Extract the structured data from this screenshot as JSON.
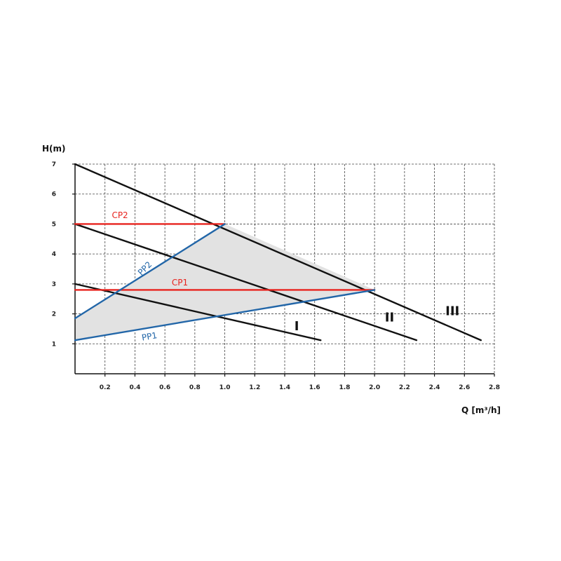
{
  "chart_data": {
    "type": "line",
    "ylabel": "H(m)",
    "xlabel": "Q [m³/h]",
    "xlim": [
      0,
      2.8
    ],
    "ylim": [
      0,
      7
    ],
    "x_ticks": [
      0.2,
      0.4,
      0.6,
      0.8,
      1.0,
      1.2,
      1.4,
      1.6,
      1.8,
      2.0,
      2.2,
      2.4,
      2.6,
      2.8
    ],
    "x_tick_labels": [
      "0.2",
      "0.4",
      "0.6",
      "0.8",
      "1.0",
      "1.2",
      "1.4",
      "1.6",
      "1.8",
      "2.0",
      "2.2",
      "2.4",
      "2.6",
      "2.8"
    ],
    "y_ticks": [
      1,
      2,
      3,
      4,
      5,
      6,
      7
    ],
    "y_tick_labels": [
      "1",
      "2",
      "3",
      "4",
      "5",
      "6",
      "7"
    ],
    "grid": true,
    "operating_area": {
      "color": "#e2e2e2",
      "points": [
        [
          0,
          1.12
        ],
        [
          0,
          1.85
        ],
        [
          1.0,
          5.0
        ],
        [
          2.0,
          2.8
        ]
      ]
    },
    "series": [
      {
        "name": "I",
        "color": "#111111",
        "points": [
          [
            0,
            3.0
          ],
          [
            1.64,
            1.12
          ]
        ]
      },
      {
        "name": "II",
        "color": "#111111",
        "points": [
          [
            0,
            5.0
          ],
          [
            2.28,
            1.12
          ]
        ]
      },
      {
        "name": "III",
        "color": "#111111",
        "points": [
          [
            0,
            7.0
          ],
          [
            2.71,
            1.12
          ]
        ]
      },
      {
        "name": "CP2",
        "color": "#e8231e",
        "points": [
          [
            0,
            5.0
          ],
          [
            1.0,
            5.0
          ]
        ]
      },
      {
        "name": "CP1",
        "color": "#e8231e",
        "points": [
          [
            0,
            2.8
          ],
          [
            2.0,
            2.8
          ]
        ]
      },
      {
        "name": "PP2",
        "color": "#2266a8",
        "points": [
          [
            0,
            1.85
          ],
          [
            1.0,
            5.0
          ]
        ]
      },
      {
        "name": "PP1",
        "color": "#2266a8",
        "points": [
          [
            0,
            1.12
          ],
          [
            2.0,
            2.8
          ]
        ]
      }
    ],
    "labels": [
      {
        "text": "CP2",
        "x": 0.3,
        "y": 5.2,
        "color": "#e8231e",
        "rotate": 0,
        "style": "series"
      },
      {
        "text": "CP1",
        "x": 0.7,
        "y": 2.95,
        "color": "#e8231e",
        "rotate": 0,
        "style": "series"
      },
      {
        "text": "PP2",
        "x": 0.48,
        "y": 3.45,
        "color": "#2266a8",
        "rotate": -45,
        "style": "series"
      },
      {
        "text": "PP1",
        "x": 0.5,
        "y": 1.15,
        "color": "#2266a8",
        "rotate": -10,
        "style": "series"
      },
      {
        "text": "I",
        "x": 1.48,
        "y": 1.45,
        "color": "#111111",
        "rotate": 0,
        "style": "roman"
      },
      {
        "text": "II",
        "x": 2.1,
        "y": 1.75,
        "color": "#111111",
        "rotate": 0,
        "style": "roman"
      },
      {
        "text": "III",
        "x": 2.52,
        "y": 1.95,
        "color": "#111111",
        "rotate": 0,
        "style": "roman"
      }
    ]
  }
}
